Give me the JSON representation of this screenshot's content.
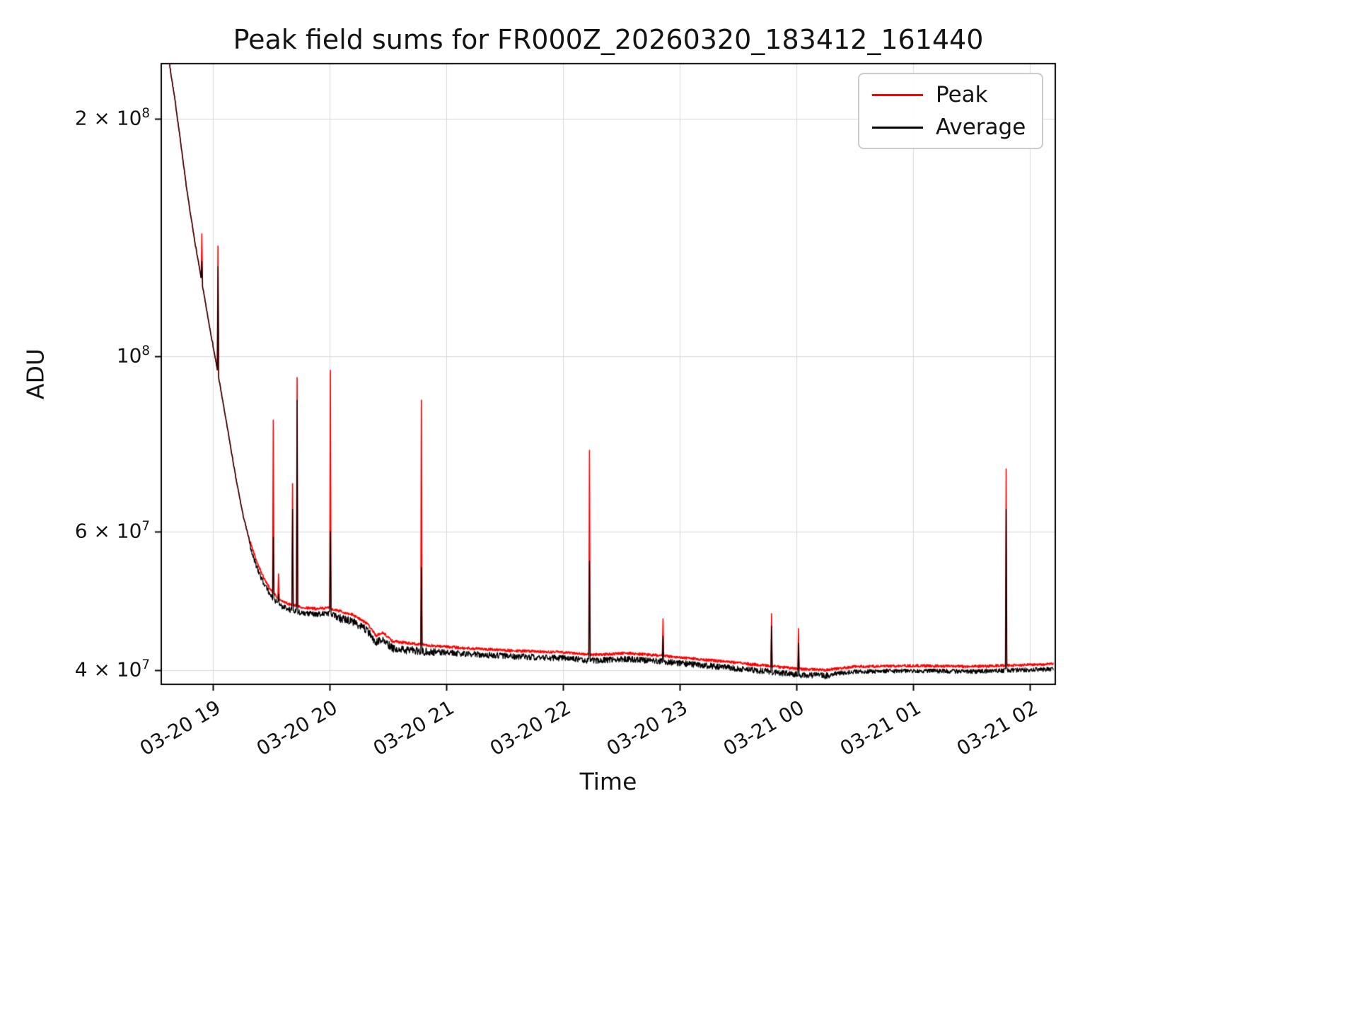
{
  "chart_data": {
    "type": "line",
    "title": "Peak field sums for FR000Z_20260320_183412_161440",
    "xlabel": "Time",
    "ylabel": "ADU",
    "yscale": "log",
    "grid": true,
    "grid_color": "#d8d8d8",
    "axis_color": "#000000",
    "legend_position": "upper right",
    "x_unit": "hours since 2026-03-20 18:00",
    "xlim": [
      0.56,
      8.22
    ],
    "ylim": [
      38400000.0,
      235000000.0
    ],
    "data_start": 0.575,
    "data_end": 8.21,
    "x_ticks": [
      {
        "t": 1,
        "label": "03-20 19"
      },
      {
        "t": 2,
        "label": "03-20 20"
      },
      {
        "t": 3,
        "label": "03-20 21"
      },
      {
        "t": 4,
        "label": "03-20 22"
      },
      {
        "t": 5,
        "label": "03-20 23"
      },
      {
        "t": 6,
        "label": "03-21 00"
      },
      {
        "t": 7,
        "label": "03-21 01"
      },
      {
        "t": 8,
        "label": "03-21 02"
      }
    ],
    "y_ticks": [
      {
        "v": 40000000.0,
        "label": "4 × 10^7"
      },
      {
        "v": 60000000.0,
        "label": "6 × 10^7"
      },
      {
        "v": 100000000.0,
        "label": "10^8"
      },
      {
        "v": 200000000.0,
        "label": "2 × 10^8"
      }
    ],
    "series": [
      {
        "name": "Peak",
        "color": "#ff0000"
      },
      {
        "name": "Average",
        "color": "#000000"
      }
    ],
    "baseline_knots_format": "[t_hours, ADU]",
    "baseline_knots": [
      [
        0.56,
        250000000.0
      ],
      [
        0.63,
        235000000.0
      ],
      [
        0.68,
        210000000.0
      ],
      [
        0.73,
        185000000.0
      ],
      [
        0.78,
        162000000.0
      ],
      [
        0.84,
        142000000.0
      ],
      [
        0.9,
        126000000.0
      ],
      [
        0.96,
        112000000.0
      ],
      [
        1.02,
        100000000.0
      ],
      [
        1.08,
        89000000.0
      ],
      [
        1.14,
        79000000.0
      ],
      [
        1.2,
        70000000.0
      ],
      [
        1.26,
        63000000.0
      ],
      [
        1.32,
        58000000.0
      ],
      [
        1.38,
        54500000.0
      ],
      [
        1.44,
        52000000.0
      ],
      [
        1.5,
        50200000.0
      ],
      [
        1.58,
        48800000.0
      ],
      [
        1.66,
        48200000.0
      ],
      [
        1.76,
        47800000.0
      ],
      [
        1.88,
        47600000.0
      ],
      [
        2.0,
        47700000.0
      ],
      [
        2.1,
        47200000.0
      ],
      [
        2.2,
        46800000.0
      ],
      [
        2.33,
        45500000.0
      ],
      [
        2.4,
        44000000.0
      ],
      [
        2.46,
        44400000.0
      ],
      [
        2.54,
        43300000.0
      ],
      [
        2.7,
        43000000.0
      ],
      [
        2.9,
        42700000.0
      ],
      [
        3.2,
        42400000.0
      ],
      [
        3.6,
        42100000.0
      ],
      [
        4.0,
        41900000.0
      ],
      [
        4.25,
        41600000.0
      ],
      [
        4.55,
        41800000.0
      ],
      [
        4.85,
        41500000.0
      ],
      [
        5.15,
        41100000.0
      ],
      [
        5.45,
        40700000.0
      ],
      [
        5.75,
        40300000.0
      ],
      [
        6.05,
        39900000.0
      ],
      [
        6.25,
        39800000.0
      ],
      [
        6.5,
        40200000.0
      ],
      [
        7.0,
        40300000.0
      ],
      [
        7.5,
        40200000.0
      ],
      [
        8.0,
        40400000.0
      ],
      [
        8.22,
        40500000.0
      ]
    ],
    "spikes_format": "[t_hours, peak_ADU, average_ADU]",
    "spikes": [
      [
        0.909,
        143000000.0,
        132000000.0
      ],
      [
        1.045,
        138000000.0,
        130000000.0
      ],
      [
        1.52,
        83000000.0,
        59000000.0
      ],
      [
        1.565,
        53000000.0,
        50000000.0
      ],
      [
        1.685,
        69000000.0,
        64000000.0
      ],
      [
        1.725,
        94000000.0,
        88000000.0
      ],
      [
        2.01,
        96000000.0,
        60000000.0
      ],
      [
        2.79,
        88000000.0,
        54000000.0
      ],
      [
        4.23,
        76000000.0,
        55000000.0
      ],
      [
        4.86,
        46500000.0,
        44200000.0
      ],
      [
        5.79,
        47200000.0,
        45500000.0
      ],
      [
        6.02,
        45200000.0,
        43300000.0
      ],
      [
        7.8,
        72000000.0,
        64000000.0
      ]
    ]
  }
}
